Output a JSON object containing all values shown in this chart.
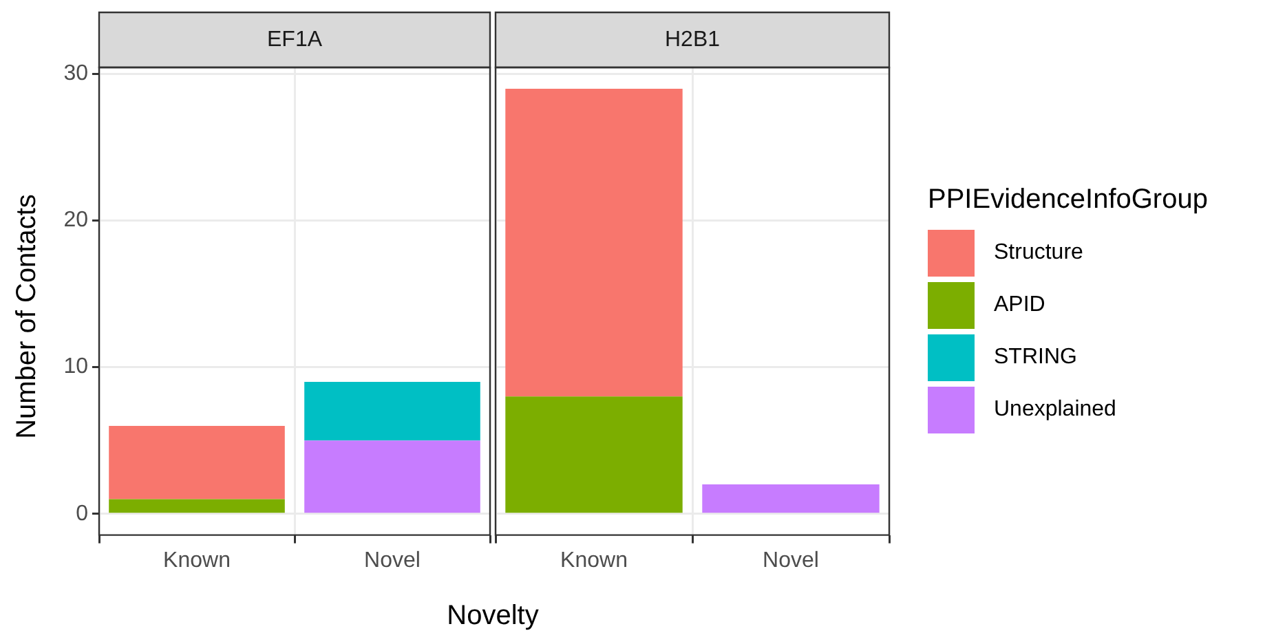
{
  "chart_data": [
    {
      "type": "bar",
      "title": "EF1A",
      "xlabel": "Novelty",
      "ylabel": "Number of Contacts",
      "categories": [
        "Known",
        "Novel"
      ],
      "stacked": true,
      "ylim": [
        -1.45,
        30.45
      ],
      "yticks": [
        0,
        10,
        20,
        30
      ],
      "grid": true,
      "series": [
        {
          "color": "#c77cff",
          "values": [
            null,
            5
          ]
        },
        {
          "color": "#00bfc4",
          "values": [
            null,
            4
          ]
        },
        {
          "color": "#7cae00",
          "values": [
            1,
            null
          ]
        },
        {
          "color": "#f8766d",
          "values": [
            5,
            null
          ]
        }
      ]
    },
    {
      "type": "bar",
      "title": "H2B1",
      "categories": [
        "Known",
        "Novel"
      ],
      "stacked": true,
      "ylim": [
        -1.45,
        30.45
      ],
      "yticks": [
        0,
        10,
        20,
        30
      ],
      "grid": true,
      "tick_labels": "x",
      "legend": "right",
      "legend_title": "PPIEvidenceInfoGroup",
      "series": [
        {
          "name": "Unexplained",
          "color": "#c77cff",
          "values": [
            null,
            2
          ]
        },
        {
          "name": "STRING",
          "color": "#00bfc4",
          "values": [
            null,
            null
          ]
        },
        {
          "name": "APID",
          "color": "#7cae00",
          "values": [
            8,
            null
          ]
        },
        {
          "name": "Structure",
          "color": "#f8766d",
          "values": [
            21,
            null
          ]
        }
      ]
    }
  ]
}
